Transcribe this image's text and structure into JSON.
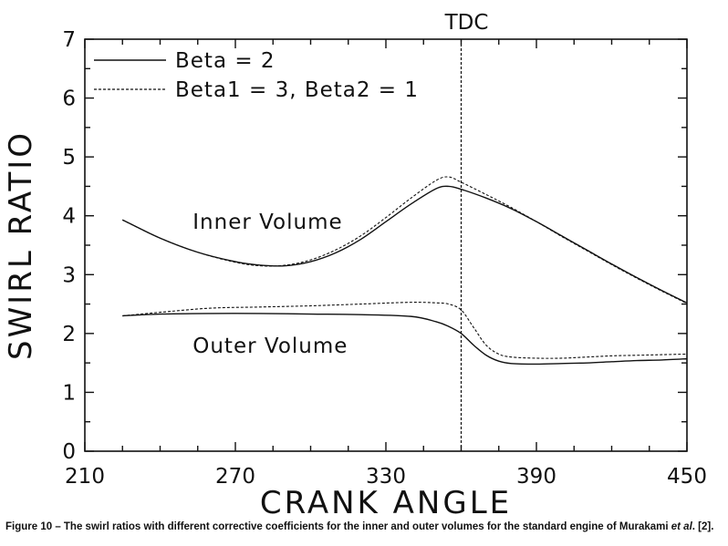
{
  "chart_data": {
    "type": "line",
    "xlabel": "CRANK ANGLE",
    "ylabel": "SWIRL RATIO",
    "xlim": [
      210,
      450
    ],
    "ylim": [
      0,
      7
    ],
    "xticks": [
      210,
      270,
      330,
      390,
      450
    ],
    "yticks": [
      0,
      1,
      2,
      3,
      4,
      5,
      6,
      7
    ],
    "grid": false,
    "legend_position": "top-left",
    "legend": [
      {
        "label": "Beta = 2",
        "style": "solid"
      },
      {
        "label": "Beta1 = 3, Beta2 = 1",
        "style": "dashed"
      }
    ],
    "vline": {
      "x": 360,
      "label": "TDC"
    },
    "annotations": [
      {
        "text": "Inner Volume",
        "x": 253,
        "y": 3.9
      },
      {
        "text": "Outer Volume",
        "x": 253,
        "y": 1.8
      }
    ],
    "series": [
      {
        "name": "Beta = 2",
        "group": "Inner Volume",
        "style": "solid",
        "x": [
          225,
          240,
          255,
          270,
          280,
          290,
          300,
          310,
          320,
          330,
          340,
          350,
          355,
          360,
          370,
          380,
          390,
          400,
          410,
          420,
          430,
          440,
          450
        ],
        "y": [
          3.93,
          3.62,
          3.38,
          3.22,
          3.16,
          3.15,
          3.22,
          3.37,
          3.6,
          3.9,
          4.2,
          4.46,
          4.5,
          4.45,
          4.3,
          4.12,
          3.9,
          3.66,
          3.42,
          3.18,
          2.95,
          2.73,
          2.52
        ]
      },
      {
        "name": "Beta1 = 3, Beta2 = 1",
        "group": "Inner Volume",
        "style": "dashed",
        "x": [
          225,
          240,
          255,
          270,
          280,
          290,
          300,
          310,
          320,
          330,
          340,
          350,
          355,
          360,
          370,
          380,
          390,
          400,
          410,
          420,
          430,
          440,
          450
        ],
        "y": [
          3.93,
          3.62,
          3.38,
          3.21,
          3.15,
          3.16,
          3.25,
          3.42,
          3.66,
          3.97,
          4.3,
          4.6,
          4.66,
          4.57,
          4.36,
          4.14,
          3.9,
          3.65,
          3.41,
          3.17,
          2.94,
          2.72,
          2.51
        ]
      },
      {
        "name": "Beta = 2",
        "group": "Outer Volume",
        "style": "solid",
        "x": [
          225,
          240,
          260,
          280,
          300,
          320,
          340,
          350,
          355,
          360,
          365,
          370,
          375,
          380,
          390,
          400,
          410,
          420,
          430,
          440,
          450
        ],
        "y": [
          2.3,
          2.33,
          2.34,
          2.34,
          2.33,
          2.32,
          2.29,
          2.2,
          2.12,
          2.0,
          1.8,
          1.63,
          1.53,
          1.49,
          1.48,
          1.49,
          1.5,
          1.52,
          1.54,
          1.55,
          1.57
        ]
      },
      {
        "name": "Beta1 = 3, Beta2 = 1",
        "group": "Outer Volume",
        "style": "dashed",
        "x": [
          225,
          240,
          260,
          280,
          300,
          320,
          340,
          350,
          355,
          360,
          365,
          370,
          375,
          380,
          390,
          400,
          410,
          420,
          430,
          440,
          450
        ],
        "y": [
          2.3,
          2.36,
          2.43,
          2.45,
          2.47,
          2.5,
          2.53,
          2.52,
          2.5,
          2.4,
          2.1,
          1.8,
          1.65,
          1.6,
          1.58,
          1.58,
          1.6,
          1.62,
          1.63,
          1.64,
          1.65
        ]
      }
    ]
  },
  "caption": {
    "prefix": "Figure 10 – The swirl ratios with different corrective coefficients for the inner and outer volumes for the standard engine of Murakami ",
    "etal": "et al",
    "suffix": ". [2]."
  }
}
